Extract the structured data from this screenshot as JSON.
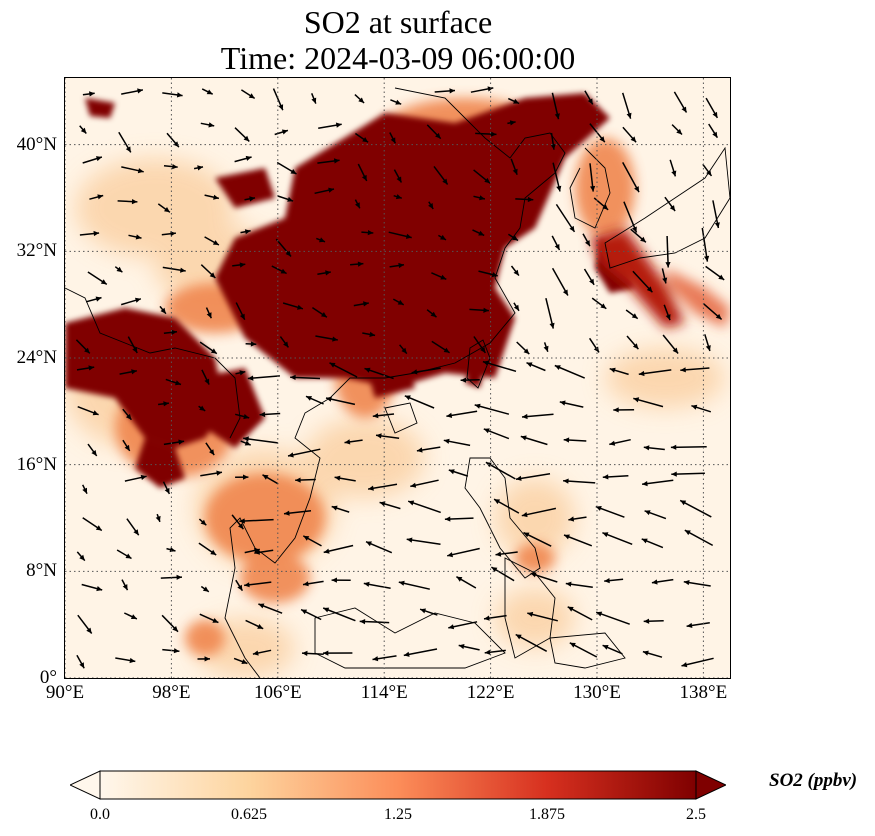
{
  "title": {
    "line1": "SO2 at surface",
    "line2": "Time: 2024-03-09 06:00:00"
  },
  "map": {
    "extent": {
      "lon_min": 90,
      "lon_max": 140,
      "lat_min": 0,
      "lat_max": 45
    },
    "lat_ticks": [
      {
        "value": 0,
        "label": "0°"
      },
      {
        "value": 8,
        "label": "8°N"
      },
      {
        "value": 16,
        "label": "16°N"
      },
      {
        "value": 24,
        "label": "24°N"
      },
      {
        "value": 32,
        "label": "32°N"
      },
      {
        "value": 40,
        "label": "40°N"
      }
    ],
    "lon_ticks": [
      {
        "value": 90,
        "label": "90°E"
      },
      {
        "value": 98,
        "label": "98°E"
      },
      {
        "value": 106,
        "label": "106°E"
      },
      {
        "value": 114,
        "label": "114°E"
      },
      {
        "value": 122,
        "label": "122°E"
      },
      {
        "value": 130,
        "label": "130°E"
      },
      {
        "value": 138,
        "label": "138°E"
      }
    ],
    "gridlines": true,
    "gridline_style": "dotted",
    "colormap": "OrRd",
    "features": [
      "coastlines",
      "country borders",
      "SO2 concentration field",
      "wind vectors"
    ]
  },
  "colorbar": {
    "label": "SO2 (ppbv)",
    "min": 0.0,
    "max": 2.5,
    "extend": "both",
    "orientation": "horizontal",
    "ticks": [
      {
        "value": 0.0,
        "label": "0.0"
      },
      {
        "value": 0.625,
        "label": "0.625"
      },
      {
        "value": 1.25,
        "label": "1.25"
      },
      {
        "value": 1.875,
        "label": "1.875"
      },
      {
        "value": 2.5,
        "label": "2.5"
      }
    ],
    "colors": [
      "#fff7ec",
      "#fdd49e",
      "#fc8d59",
      "#d7301f",
      "#7f0000"
    ]
  }
}
